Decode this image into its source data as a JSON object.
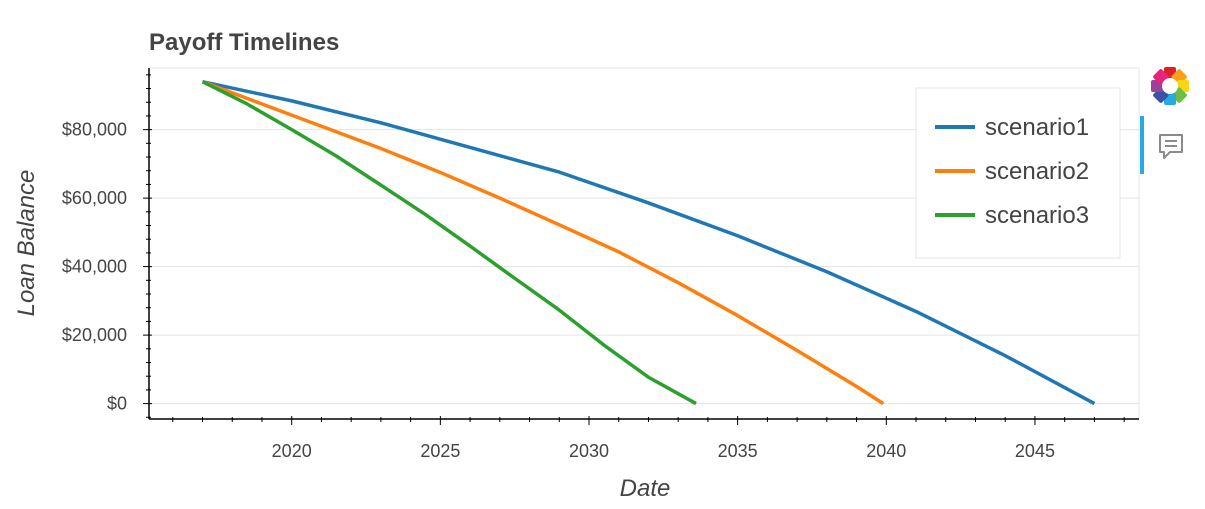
{
  "chart_data": {
    "type": "line",
    "title": "Payoff Timelines",
    "xlabel": "Date",
    "ylabel": "Loan Balance",
    "xlim": [
      2015.2,
      2048.5
    ],
    "ylim": [
      -4500,
      98000
    ],
    "x_ticks": [
      2020,
      2025,
      2030,
      2035,
      2040,
      2045
    ],
    "x_tick_labels": [
      "2020",
      "2025",
      "2030",
      "2035",
      "2040",
      "2045"
    ],
    "y_ticks": [
      0,
      20000,
      40000,
      60000,
      80000
    ],
    "y_tick_labels": [
      "$0",
      "$20,000",
      "$40,000",
      "$60,000",
      "$80,000"
    ],
    "grid": true,
    "legend_position": "top-right",
    "series": [
      {
        "name": "scenario1",
        "color": "#1f77b4",
        "x": [
          2017.0,
          2020.0,
          2023.0,
          2026.0,
          2029.0,
          2032.0,
          2035.0,
          2038.0,
          2041.0,
          2044.0,
          2047.0
        ],
        "y": [
          94000,
          88400,
          82000,
          74800,
          67600,
          58600,
          49000,
          38500,
          26900,
          14000,
          0
        ]
      },
      {
        "name": "scenario2",
        "color": "#ff7f0e",
        "x": [
          2017.0,
          2019.0,
          2021.0,
          2023.0,
          2025.0,
          2027.0,
          2029.0,
          2031.0,
          2033.0,
          2035.0,
          2037.0,
          2039.0,
          2039.9
        ],
        "y": [
          94000,
          87500,
          81000,
          74500,
          67500,
          60000,
          52200,
          44300,
          35300,
          25700,
          15500,
          5000,
          0
        ]
      },
      {
        "name": "scenario3",
        "color": "#2ca02c",
        "x": [
          2017.0,
          2018.5,
          2020.0,
          2021.5,
          2023.0,
          2024.5,
          2026.0,
          2027.5,
          2029.0,
          2030.5,
          2032.0,
          2033.6
        ],
        "y": [
          94000,
          87500,
          80000,
          72300,
          63800,
          55200,
          46000,
          36600,
          27300,
          17100,
          7700,
          0
        ]
      }
    ]
  },
  "toolbar": {
    "logo_icon": "bokeh-logo-icon",
    "hover_icon": "hover-tooltip-icon",
    "accent_color": "#26aae1"
  }
}
